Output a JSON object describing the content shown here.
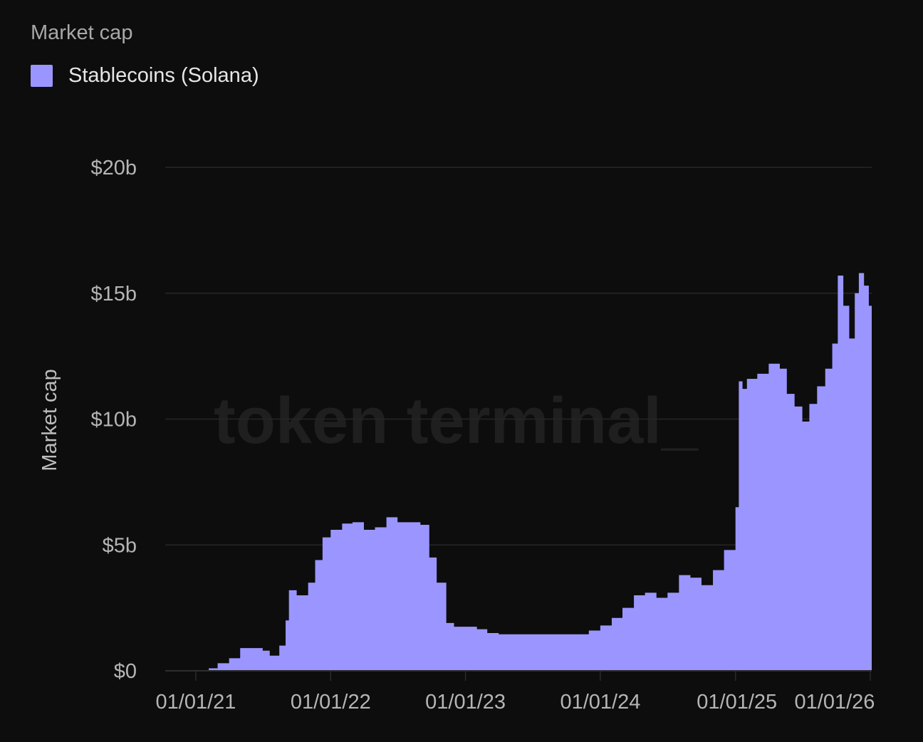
{
  "chart_data": {
    "type": "area",
    "title": "Market cap",
    "ylabel": "Market cap",
    "xlabel": "",
    "watermark": "token terminal_",
    "legend_position": "top-left",
    "grid": true,
    "ylim": [
      0,
      20
    ],
    "y_unit": "billion USD",
    "y_ticks": [
      {
        "value": 0,
        "label": "$0"
      },
      {
        "value": 5,
        "label": "$5b"
      },
      {
        "value": 10,
        "label": "$10b"
      },
      {
        "value": 15,
        "label": "$15b"
      },
      {
        "value": 20,
        "label": "$20b"
      }
    ],
    "x_ticks": [
      {
        "value": "2021-01-01",
        "label": "01/01/21"
      },
      {
        "value": "2022-01-01",
        "label": "01/01/22"
      },
      {
        "value": "2023-01-01",
        "label": "01/01/23"
      },
      {
        "value": "2024-01-01",
        "label": "01/01/24"
      },
      {
        "value": "2025-01-01",
        "label": "01/01/25"
      },
      {
        "value": "2026-01-01",
        "label": "01/01/26"
      }
    ],
    "series": [
      {
        "name": "Stablecoins (Solana)",
        "color": "#9b96ff",
        "x": [
          "2021-02-05",
          "2021-03-01",
          "2021-04-01",
          "2021-05-01",
          "2021-06-01",
          "2021-07-01",
          "2021-07-20",
          "2021-08-15",
          "2021-09-01",
          "2021-09-10",
          "2021-10-01",
          "2021-11-01",
          "2021-11-20",
          "2021-12-10",
          "2022-01-01",
          "2022-02-01",
          "2022-03-01",
          "2022-04-01",
          "2022-05-01",
          "2022-06-01",
          "2022-07-01",
          "2022-08-01",
          "2022-09-01",
          "2022-09-25",
          "2022-10-15",
          "2022-11-10",
          "2022-12-01",
          "2023-01-01",
          "2023-02-01",
          "2023-03-01",
          "2023-04-01",
          "2023-06-01",
          "2023-08-01",
          "2023-10-01",
          "2023-11-15",
          "2023-12-01",
          "2024-01-01",
          "2024-02-01",
          "2024-03-01",
          "2024-04-01",
          "2024-05-01",
          "2024-06-01",
          "2024-07-01",
          "2024-08-01",
          "2024-09-01",
          "2024-10-01",
          "2024-11-01",
          "2024-12-01",
          "2025-01-01",
          "2025-01-10",
          "2025-01-20",
          "2025-02-01",
          "2025-03-01",
          "2025-04-01",
          "2025-05-01",
          "2025-05-20",
          "2025-06-10",
          "2025-07-01",
          "2025-07-20",
          "2025-08-10",
          "2025-09-01",
          "2025-09-20",
          "2025-10-05",
          "2025-10-20",
          "2025-11-05",
          "2025-11-20",
          "2025-12-01",
          "2025-12-15",
          "2025-12-28"
        ],
        "values": [
          0.1,
          0.3,
          0.5,
          0.9,
          0.9,
          0.8,
          0.6,
          1.0,
          2.0,
          3.2,
          3.0,
          3.5,
          4.4,
          5.3,
          5.6,
          5.85,
          5.9,
          5.6,
          5.7,
          6.1,
          5.9,
          5.9,
          5.8,
          4.5,
          3.5,
          1.9,
          1.75,
          1.75,
          1.65,
          1.5,
          1.45,
          1.45,
          1.45,
          1.45,
          1.45,
          1.6,
          1.8,
          2.1,
          2.5,
          3.0,
          3.1,
          2.9,
          3.1,
          3.8,
          3.7,
          3.4,
          4.0,
          4.8,
          6.5,
          11.5,
          11.2,
          11.6,
          11.8,
          12.2,
          12.0,
          11.0,
          10.5,
          9.9,
          10.6,
          11.3,
          12.0,
          13.0,
          15.7,
          14.5,
          13.2,
          15.0,
          15.8,
          15.3,
          14.5
        ]
      }
    ]
  }
}
